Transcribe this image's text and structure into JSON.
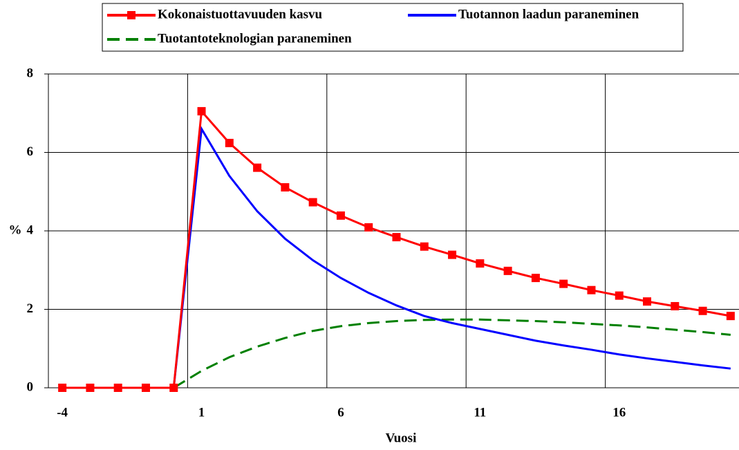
{
  "chart_data": {
    "type": "line",
    "xlabel": "Vuosi",
    "ylabel": "%",
    "categories": [
      "-4",
      null,
      null,
      null,
      null,
      "1",
      null,
      null,
      null,
      null,
      "6",
      null,
      null,
      null,
      null,
      "11",
      null,
      null,
      null,
      null,
      "16",
      null,
      null,
      null,
      null
    ],
    "ylim": [
      0,
      8
    ],
    "yticks": [
      0,
      2,
      4,
      6,
      8
    ],
    "grid": true,
    "series": [
      {
        "name": "Kokonaistuottavuuden kasvu",
        "color": "#ff0000",
        "marker": "square",
        "values": [
          0,
          0,
          0,
          0,
          0,
          7.05,
          6.24,
          5.61,
          5.11,
          4.73,
          4.39,
          4.09,
          3.84,
          3.6,
          3.39,
          3.17,
          2.98,
          2.8,
          2.65,
          2.49,
          2.35,
          2.2,
          2.08,
          1.96,
          1.83
        ]
      },
      {
        "name": "Tuotannon laadun paraneminen",
        "color": "#0000ff",
        "values": [
          0,
          0,
          0,
          0,
          0,
          6.6,
          5.4,
          4.5,
          3.8,
          3.25,
          2.8,
          2.42,
          2.1,
          1.83,
          1.65,
          1.5,
          1.35,
          1.2,
          1.08,
          0.97,
          0.85,
          0.75,
          0.66,
          0.57,
          0.49
        ]
      },
      {
        "name": "Tuotantoteknologian paraneminen",
        "color": "#008000",
        "dash": true,
        "values": [
          0,
          0,
          0,
          0,
          0,
          0.43,
          0.78,
          1.05,
          1.27,
          1.45,
          1.57,
          1.65,
          1.7,
          1.73,
          1.74,
          1.74,
          1.72,
          1.7,
          1.67,
          1.63,
          1.59,
          1.54,
          1.48,
          1.42,
          1.35
        ]
      }
    ]
  }
}
